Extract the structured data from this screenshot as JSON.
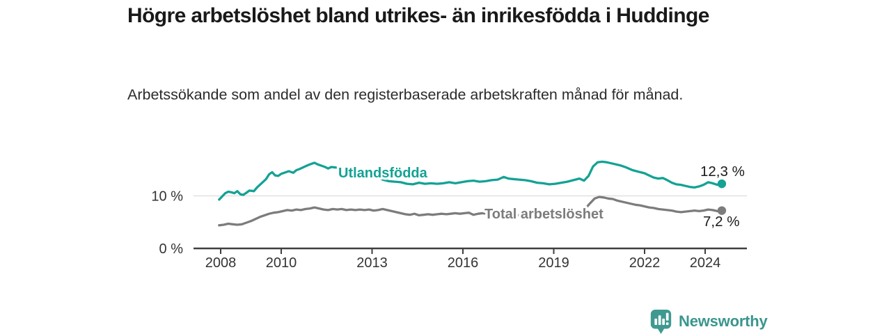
{
  "title": "Högre arbetslöshet bland utrikes- än inrikesfödda i Huddinge",
  "subtitle": "Arbetssökande som andel av den registerbaserade arbetskraften månad för månad.",
  "branding": {
    "name": "Newsworthy",
    "icon": "newsworthy-chart-bubble-icon",
    "color": "#3e9a91"
  },
  "palette": {
    "accent_teal": "#13a294",
    "gray": "#7c7c7c",
    "axis": "#3f3f3f",
    "grid": "#dcdcdc",
    "text_dark": "#1a1a1a"
  },
  "chart_data": {
    "type": "line",
    "title": "Högre arbetslöshet bland utrikes- än inrikesfödda i Huddinge",
    "subtitle": "Arbetssökande som andel av den registerbaserade arbetskraften månad för månad.",
    "xlabel": "",
    "ylabel": "",
    "ylim": [
      0,
      18
    ],
    "xlim": [
      2007.5,
      2025.4
    ],
    "grid": "single horizontal gridline at 10 %",
    "legend_position": "inline labels on lines",
    "x_ticks": [
      2008,
      2010,
      2013,
      2016,
      2019,
      2022,
      2024
    ],
    "y_ticks": [
      {
        "value": 0,
        "label": "0 %"
      },
      {
        "value": 10,
        "label": "10 %"
      }
    ],
    "series": [
      {
        "name": "Utlandsfödda",
        "color": "#13a294",
        "end_value": 12.3,
        "end_label": "12,3 %",
        "points": [
          [
            2007.95,
            9.3
          ],
          [
            2008.05,
            9.9
          ],
          [
            2008.15,
            10.5
          ],
          [
            2008.25,
            10.8
          ],
          [
            2008.35,
            10.7
          ],
          [
            2008.45,
            10.5
          ],
          [
            2008.55,
            10.9
          ],
          [
            2008.65,
            10.3
          ],
          [
            2008.75,
            10.2
          ],
          [
            2008.85,
            10.6
          ],
          [
            2008.95,
            11.0
          ],
          [
            2009.1,
            10.9
          ],
          [
            2009.2,
            11.6
          ],
          [
            2009.35,
            12.4
          ],
          [
            2009.5,
            13.2
          ],
          [
            2009.6,
            14.1
          ],
          [
            2009.7,
            14.5
          ],
          [
            2009.8,
            13.9
          ],
          [
            2009.9,
            13.8
          ],
          [
            2010.0,
            14.2
          ],
          [
            2010.1,
            14.4
          ],
          [
            2010.25,
            14.7
          ],
          [
            2010.4,
            14.4
          ],
          [
            2010.5,
            14.9
          ],
          [
            2010.6,
            15.1
          ],
          [
            2010.75,
            15.5
          ],
          [
            2010.9,
            15.9
          ],
          [
            2011.0,
            16.1
          ],
          [
            2011.1,
            16.3
          ],
          [
            2011.2,
            16.0
          ],
          [
            2011.3,
            15.8
          ],
          [
            2011.45,
            15.5
          ],
          [
            2011.55,
            15.2
          ],
          [
            2011.65,
            15.5
          ],
          [
            2011.8,
            15.4
          ],
          [
            2011.95,
            15.2
          ],
          [
            2012.15,
            15.0
          ],
          [
            2012.35,
            14.8
          ],
          [
            2012.55,
            14.6
          ],
          [
            2012.75,
            14.3
          ],
          [
            2012.95,
            13.9
          ],
          [
            2013.15,
            13.5
          ],
          [
            2013.35,
            13.1
          ],
          [
            2013.55,
            12.8
          ],
          [
            2013.75,
            12.7
          ],
          [
            2013.95,
            12.6
          ],
          [
            2014.15,
            12.3
          ],
          [
            2014.35,
            12.2
          ],
          [
            2014.55,
            12.5
          ],
          [
            2014.75,
            12.3
          ],
          [
            2014.95,
            12.4
          ],
          [
            2015.15,
            12.3
          ],
          [
            2015.35,
            12.4
          ],
          [
            2015.55,
            12.6
          ],
          [
            2015.75,
            12.4
          ],
          [
            2015.95,
            12.6
          ],
          [
            2016.15,
            12.8
          ],
          [
            2016.35,
            12.9
          ],
          [
            2016.55,
            12.7
          ],
          [
            2016.75,
            12.8
          ],
          [
            2016.95,
            13.0
          ],
          [
            2017.15,
            13.1
          ],
          [
            2017.35,
            13.6
          ],
          [
            2017.5,
            13.3
          ],
          [
            2017.65,
            13.2
          ],
          [
            2017.85,
            13.1
          ],
          [
            2018.05,
            13.0
          ],
          [
            2018.25,
            12.8
          ],
          [
            2018.45,
            12.5
          ],
          [
            2018.65,
            12.4
          ],
          [
            2018.85,
            12.2
          ],
          [
            2019.05,
            12.3
          ],
          [
            2019.25,
            12.5
          ],
          [
            2019.45,
            12.7
          ],
          [
            2019.65,
            13.0
          ],
          [
            2019.85,
            13.3
          ],
          [
            2020.0,
            12.9
          ],
          [
            2020.15,
            13.8
          ],
          [
            2020.3,
            15.6
          ],
          [
            2020.45,
            16.4
          ],
          [
            2020.6,
            16.5
          ],
          [
            2020.75,
            16.4
          ],
          [
            2020.9,
            16.2
          ],
          [
            2021.05,
            16.0
          ],
          [
            2021.2,
            15.8
          ],
          [
            2021.4,
            15.4
          ],
          [
            2021.6,
            14.9
          ],
          [
            2021.8,
            14.6
          ],
          [
            2022.0,
            14.3
          ],
          [
            2022.15,
            13.9
          ],
          [
            2022.3,
            13.5
          ],
          [
            2022.45,
            13.3
          ],
          [
            2022.6,
            13.4
          ],
          [
            2022.75,
            13.0
          ],
          [
            2022.9,
            12.5
          ],
          [
            2023.05,
            12.2
          ],
          [
            2023.2,
            12.1
          ],
          [
            2023.35,
            11.9
          ],
          [
            2023.5,
            11.7
          ],
          [
            2023.65,
            11.6
          ],
          [
            2023.8,
            11.8
          ],
          [
            2023.95,
            12.1
          ],
          [
            2024.1,
            12.6
          ],
          [
            2024.25,
            12.4
          ],
          [
            2024.4,
            12.1
          ],
          [
            2024.55,
            12.3
          ]
        ]
      },
      {
        "name": "Total arbetslöshet",
        "color": "#7c7c7c",
        "end_value": 7.2,
        "end_label": "7,2 %",
        "points": [
          [
            2007.95,
            4.4
          ],
          [
            2008.1,
            4.5
          ],
          [
            2008.25,
            4.7
          ],
          [
            2008.4,
            4.6
          ],
          [
            2008.55,
            4.5
          ],
          [
            2008.7,
            4.6
          ],
          [
            2008.85,
            4.9
          ],
          [
            2009.0,
            5.2
          ],
          [
            2009.15,
            5.6
          ],
          [
            2009.3,
            6.0
          ],
          [
            2009.45,
            6.3
          ],
          [
            2009.6,
            6.6
          ],
          [
            2009.75,
            6.8
          ],
          [
            2009.9,
            6.9
          ],
          [
            2010.05,
            7.1
          ],
          [
            2010.2,
            7.3
          ],
          [
            2010.35,
            7.2
          ],
          [
            2010.5,
            7.4
          ],
          [
            2010.65,
            7.3
          ],
          [
            2010.8,
            7.5
          ],
          [
            2010.95,
            7.6
          ],
          [
            2011.1,
            7.8
          ],
          [
            2011.25,
            7.6
          ],
          [
            2011.4,
            7.4
          ],
          [
            2011.55,
            7.3
          ],
          [
            2011.7,
            7.5
          ],
          [
            2011.85,
            7.4
          ],
          [
            2012.0,
            7.5
          ],
          [
            2012.15,
            7.3
          ],
          [
            2012.3,
            7.4
          ],
          [
            2012.45,
            7.3
          ],
          [
            2012.6,
            7.4
          ],
          [
            2012.75,
            7.3
          ],
          [
            2012.9,
            7.4
          ],
          [
            2013.05,
            7.2
          ],
          [
            2013.2,
            7.3
          ],
          [
            2013.35,
            7.5
          ],
          [
            2013.5,
            7.3
          ],
          [
            2013.65,
            7.1
          ],
          [
            2013.8,
            6.9
          ],
          [
            2013.95,
            6.7
          ],
          [
            2014.1,
            6.5
          ],
          [
            2014.25,
            6.4
          ],
          [
            2014.4,
            6.6
          ],
          [
            2014.55,
            6.3
          ],
          [
            2014.7,
            6.4
          ],
          [
            2014.85,
            6.5
          ],
          [
            2015.0,
            6.4
          ],
          [
            2015.15,
            6.5
          ],
          [
            2015.3,
            6.6
          ],
          [
            2015.45,
            6.5
          ],
          [
            2015.6,
            6.6
          ],
          [
            2015.75,
            6.7
          ],
          [
            2015.9,
            6.6
          ],
          [
            2016.05,
            6.7
          ],
          [
            2016.2,
            6.8
          ],
          [
            2016.35,
            6.4
          ],
          [
            2016.5,
            6.6
          ],
          [
            2016.65,
            6.7
          ],
          [
            2016.8,
            6.6
          ],
          [
            2016.95,
            6.7
          ],
          [
            2017.1,
            6.6
          ],
          [
            2017.3,
            6.5
          ],
          [
            2017.5,
            6.4
          ],
          [
            2017.7,
            6.3
          ],
          [
            2017.9,
            6.3
          ],
          [
            2018.1,
            6.2
          ],
          [
            2018.3,
            6.3
          ],
          [
            2018.5,
            6.3
          ],
          [
            2018.7,
            6.4
          ],
          [
            2018.9,
            6.4
          ],
          [
            2019.1,
            6.5
          ],
          [
            2019.3,
            6.5
          ],
          [
            2019.5,
            6.6
          ],
          [
            2019.7,
            6.8
          ],
          [
            2019.9,
            7.0
          ],
          [
            2020.05,
            7.6
          ],
          [
            2020.2,
            8.6
          ],
          [
            2020.35,
            9.5
          ],
          [
            2020.5,
            9.8
          ],
          [
            2020.65,
            9.7
          ],
          [
            2020.8,
            9.5
          ],
          [
            2020.95,
            9.4
          ],
          [
            2021.1,
            9.1
          ],
          [
            2021.25,
            8.9
          ],
          [
            2021.4,
            8.7
          ],
          [
            2021.55,
            8.5
          ],
          [
            2021.7,
            8.3
          ],
          [
            2021.85,
            8.2
          ],
          [
            2022.0,
            8.0
          ],
          [
            2022.15,
            7.8
          ],
          [
            2022.3,
            7.7
          ],
          [
            2022.45,
            7.5
          ],
          [
            2022.6,
            7.4
          ],
          [
            2022.75,
            7.3
          ],
          [
            2022.9,
            7.2
          ],
          [
            2023.05,
            7.0
          ],
          [
            2023.2,
            6.9
          ],
          [
            2023.35,
            7.0
          ],
          [
            2023.5,
            7.1
          ],
          [
            2023.65,
            7.2
          ],
          [
            2023.8,
            7.1
          ],
          [
            2023.95,
            7.2
          ],
          [
            2024.1,
            7.4
          ],
          [
            2024.25,
            7.3
          ],
          [
            2024.4,
            7.1
          ],
          [
            2024.55,
            7.2
          ]
        ]
      }
    ]
  }
}
